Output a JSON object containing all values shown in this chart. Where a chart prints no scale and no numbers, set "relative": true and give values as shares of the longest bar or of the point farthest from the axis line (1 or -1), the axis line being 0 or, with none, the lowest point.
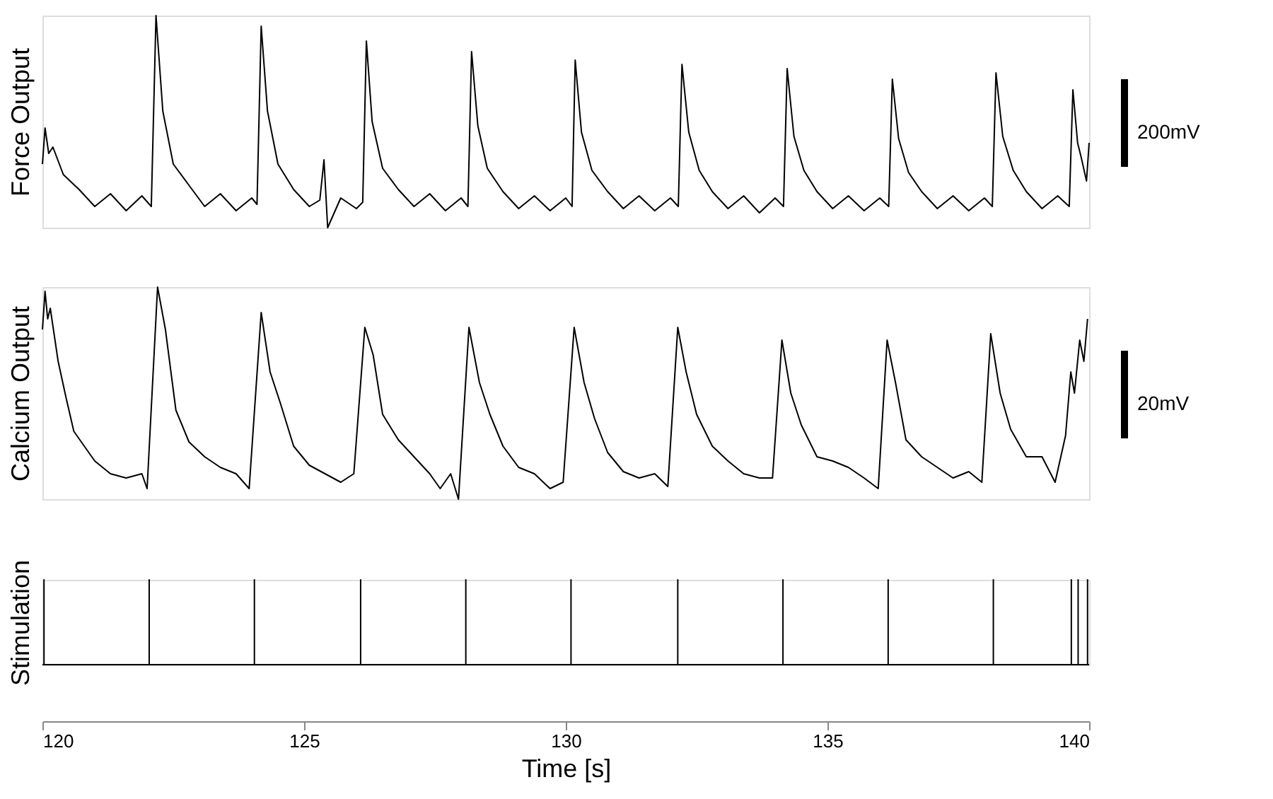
{
  "chart_data": [
    {
      "type": "line",
      "ylabel": "Force Output",
      "relative": true,
      "xlim": [
        120,
        140
      ],
      "tick_labels": false,
      "annotations": [
        "200mV"
      ],
      "x": [
        120.0,
        120.05,
        120.12,
        120.2,
        120.4,
        120.7,
        121.0,
        121.3,
        121.6,
        121.9,
        122.08,
        122.17,
        122.3,
        122.5,
        122.8,
        123.1,
        123.4,
        123.7,
        124.0,
        124.1,
        124.18,
        124.3,
        124.5,
        124.8,
        125.1,
        125.3,
        125.38,
        125.45,
        125.7,
        126.0,
        126.12,
        126.19,
        126.3,
        126.5,
        126.8,
        127.1,
        127.4,
        127.7,
        128.0,
        128.13,
        128.2,
        128.32,
        128.5,
        128.8,
        129.1,
        129.4,
        129.7,
        130.0,
        130.12,
        130.18,
        130.3,
        130.5,
        130.8,
        131.1,
        131.4,
        131.7,
        132.0,
        132.15,
        132.22,
        132.35,
        132.55,
        132.8,
        133.1,
        133.4,
        133.7,
        134.0,
        134.16,
        134.23,
        134.36,
        134.55,
        134.8,
        135.1,
        135.4,
        135.7,
        136.0,
        136.17,
        136.24,
        136.36,
        136.55,
        136.8,
        137.1,
        137.4,
        137.7,
        138.0,
        138.15,
        138.22,
        138.35,
        138.55,
        138.8,
        139.1,
        139.4,
        139.62,
        139.69,
        139.78,
        139.85,
        139.95,
        140.0
      ],
      "series": [
        {
          "color": "#000000",
          "values": [
            0.3,
            0.47,
            0.35,
            0.38,
            0.25,
            0.18,
            0.1,
            0.16,
            0.08,
            0.15,
            0.1,
            1.0,
            0.55,
            0.3,
            0.2,
            0.1,
            0.16,
            0.08,
            0.14,
            0.11,
            0.95,
            0.55,
            0.3,
            0.18,
            0.1,
            0.13,
            0.32,
            0.0,
            0.14,
            0.09,
            0.12,
            0.88,
            0.5,
            0.28,
            0.18,
            0.1,
            0.16,
            0.08,
            0.14,
            0.1,
            0.83,
            0.48,
            0.28,
            0.17,
            0.09,
            0.15,
            0.08,
            0.14,
            0.1,
            0.79,
            0.45,
            0.27,
            0.17,
            0.09,
            0.15,
            0.08,
            0.14,
            0.1,
            0.77,
            0.45,
            0.27,
            0.17,
            0.09,
            0.15,
            0.07,
            0.14,
            0.1,
            0.75,
            0.43,
            0.27,
            0.17,
            0.09,
            0.15,
            0.08,
            0.14,
            0.1,
            0.7,
            0.42,
            0.26,
            0.17,
            0.09,
            0.15,
            0.08,
            0.14,
            0.1,
            0.73,
            0.43,
            0.27,
            0.17,
            0.09,
            0.15,
            0.1,
            0.65,
            0.4,
            0.33,
            0.22,
            0.4
          ]
        }
      ]
    },
    {
      "type": "line",
      "ylabel": "Calcium Output",
      "relative": true,
      "xlim": [
        120,
        140
      ],
      "tick_labels": false,
      "annotations": [
        "20mV"
      ],
      "x": [
        120.0,
        120.05,
        120.1,
        120.15,
        120.3,
        120.45,
        120.6,
        120.8,
        121.0,
        121.3,
        121.6,
        121.9,
        122.0,
        122.2,
        122.35,
        122.55,
        122.8,
        123.1,
        123.4,
        123.7,
        123.95,
        124.18,
        124.35,
        124.55,
        124.8,
        125.1,
        125.4,
        125.7,
        125.95,
        126.16,
        126.32,
        126.5,
        126.8,
        127.1,
        127.4,
        127.6,
        127.8,
        127.95,
        128.15,
        128.35,
        128.55,
        128.8,
        129.1,
        129.4,
        129.7,
        129.95,
        130.16,
        130.35,
        130.55,
        130.8,
        131.1,
        131.4,
        131.7,
        131.95,
        132.14,
        132.3,
        132.5,
        132.8,
        133.1,
        133.4,
        133.7,
        133.95,
        134.13,
        134.3,
        134.5,
        134.8,
        135.1,
        135.4,
        135.7,
        135.97,
        136.14,
        136.3,
        136.5,
        136.8,
        137.1,
        137.4,
        137.7,
        137.95,
        138.12,
        138.3,
        138.5,
        138.8,
        139.1,
        139.35,
        139.55,
        139.65,
        139.72,
        139.82,
        139.9,
        139.97
      ],
      "series": [
        {
          "color": "#000000",
          "values": [
            0.8,
            0.98,
            0.85,
            0.9,
            0.65,
            0.48,
            0.32,
            0.25,
            0.18,
            0.12,
            0.1,
            0.12,
            0.05,
            1.0,
            0.8,
            0.42,
            0.27,
            0.2,
            0.15,
            0.12,
            0.05,
            0.88,
            0.6,
            0.45,
            0.25,
            0.16,
            0.12,
            0.08,
            0.12,
            0.81,
            0.68,
            0.4,
            0.28,
            0.2,
            0.12,
            0.05,
            0.12,
            0.0,
            0.81,
            0.55,
            0.4,
            0.25,
            0.15,
            0.12,
            0.05,
            0.08,
            0.81,
            0.55,
            0.38,
            0.22,
            0.13,
            0.1,
            0.12,
            0.06,
            0.81,
            0.6,
            0.4,
            0.25,
            0.18,
            0.12,
            0.1,
            0.1,
            0.75,
            0.5,
            0.35,
            0.2,
            0.18,
            0.15,
            0.1,
            0.05,
            0.75,
            0.55,
            0.28,
            0.2,
            0.15,
            0.1,
            0.13,
            0.08,
            0.78,
            0.5,
            0.33,
            0.2,
            0.2,
            0.08,
            0.3,
            0.6,
            0.5,
            0.75,
            0.65,
            0.85
          ]
        }
      ]
    },
    {
      "type": "line",
      "ylabel": "Stimulation",
      "xlabel": "Time [s]",
      "relative": true,
      "xlim": [
        120,
        140
      ],
      "xticks": [
        120,
        125,
        130,
        135,
        140
      ],
      "tick_labels": "x",
      "x": [
        120.0,
        120.03,
        120.03,
        120.03,
        122.04,
        122.04,
        122.04,
        124.05,
        124.05,
        124.05,
        126.08,
        126.08,
        126.08,
        128.09,
        128.09,
        128.09,
        130.1,
        130.1,
        130.1,
        132.14,
        132.14,
        132.14,
        134.15,
        134.15,
        134.15,
        136.16,
        136.16,
        136.16,
        138.17,
        138.17,
        138.17,
        139.66,
        139.66,
        139.66,
        139.79,
        139.79,
        139.79,
        139.97,
        139.97,
        139.97,
        140.0
      ],
      "series": [
        {
          "color": "#000000",
          "values": [
            0,
            0,
            1,
            0,
            0,
            1,
            0,
            0,
            1,
            0,
            0,
            1,
            0,
            0,
            1,
            0,
            0,
            1,
            0,
            0,
            1,
            0,
            0,
            1,
            0,
            0,
            1,
            0,
            0,
            1,
            0,
            0,
            1,
            0,
            0,
            1,
            0,
            0,
            1,
            0,
            0
          ]
        }
      ]
    }
  ]
}
